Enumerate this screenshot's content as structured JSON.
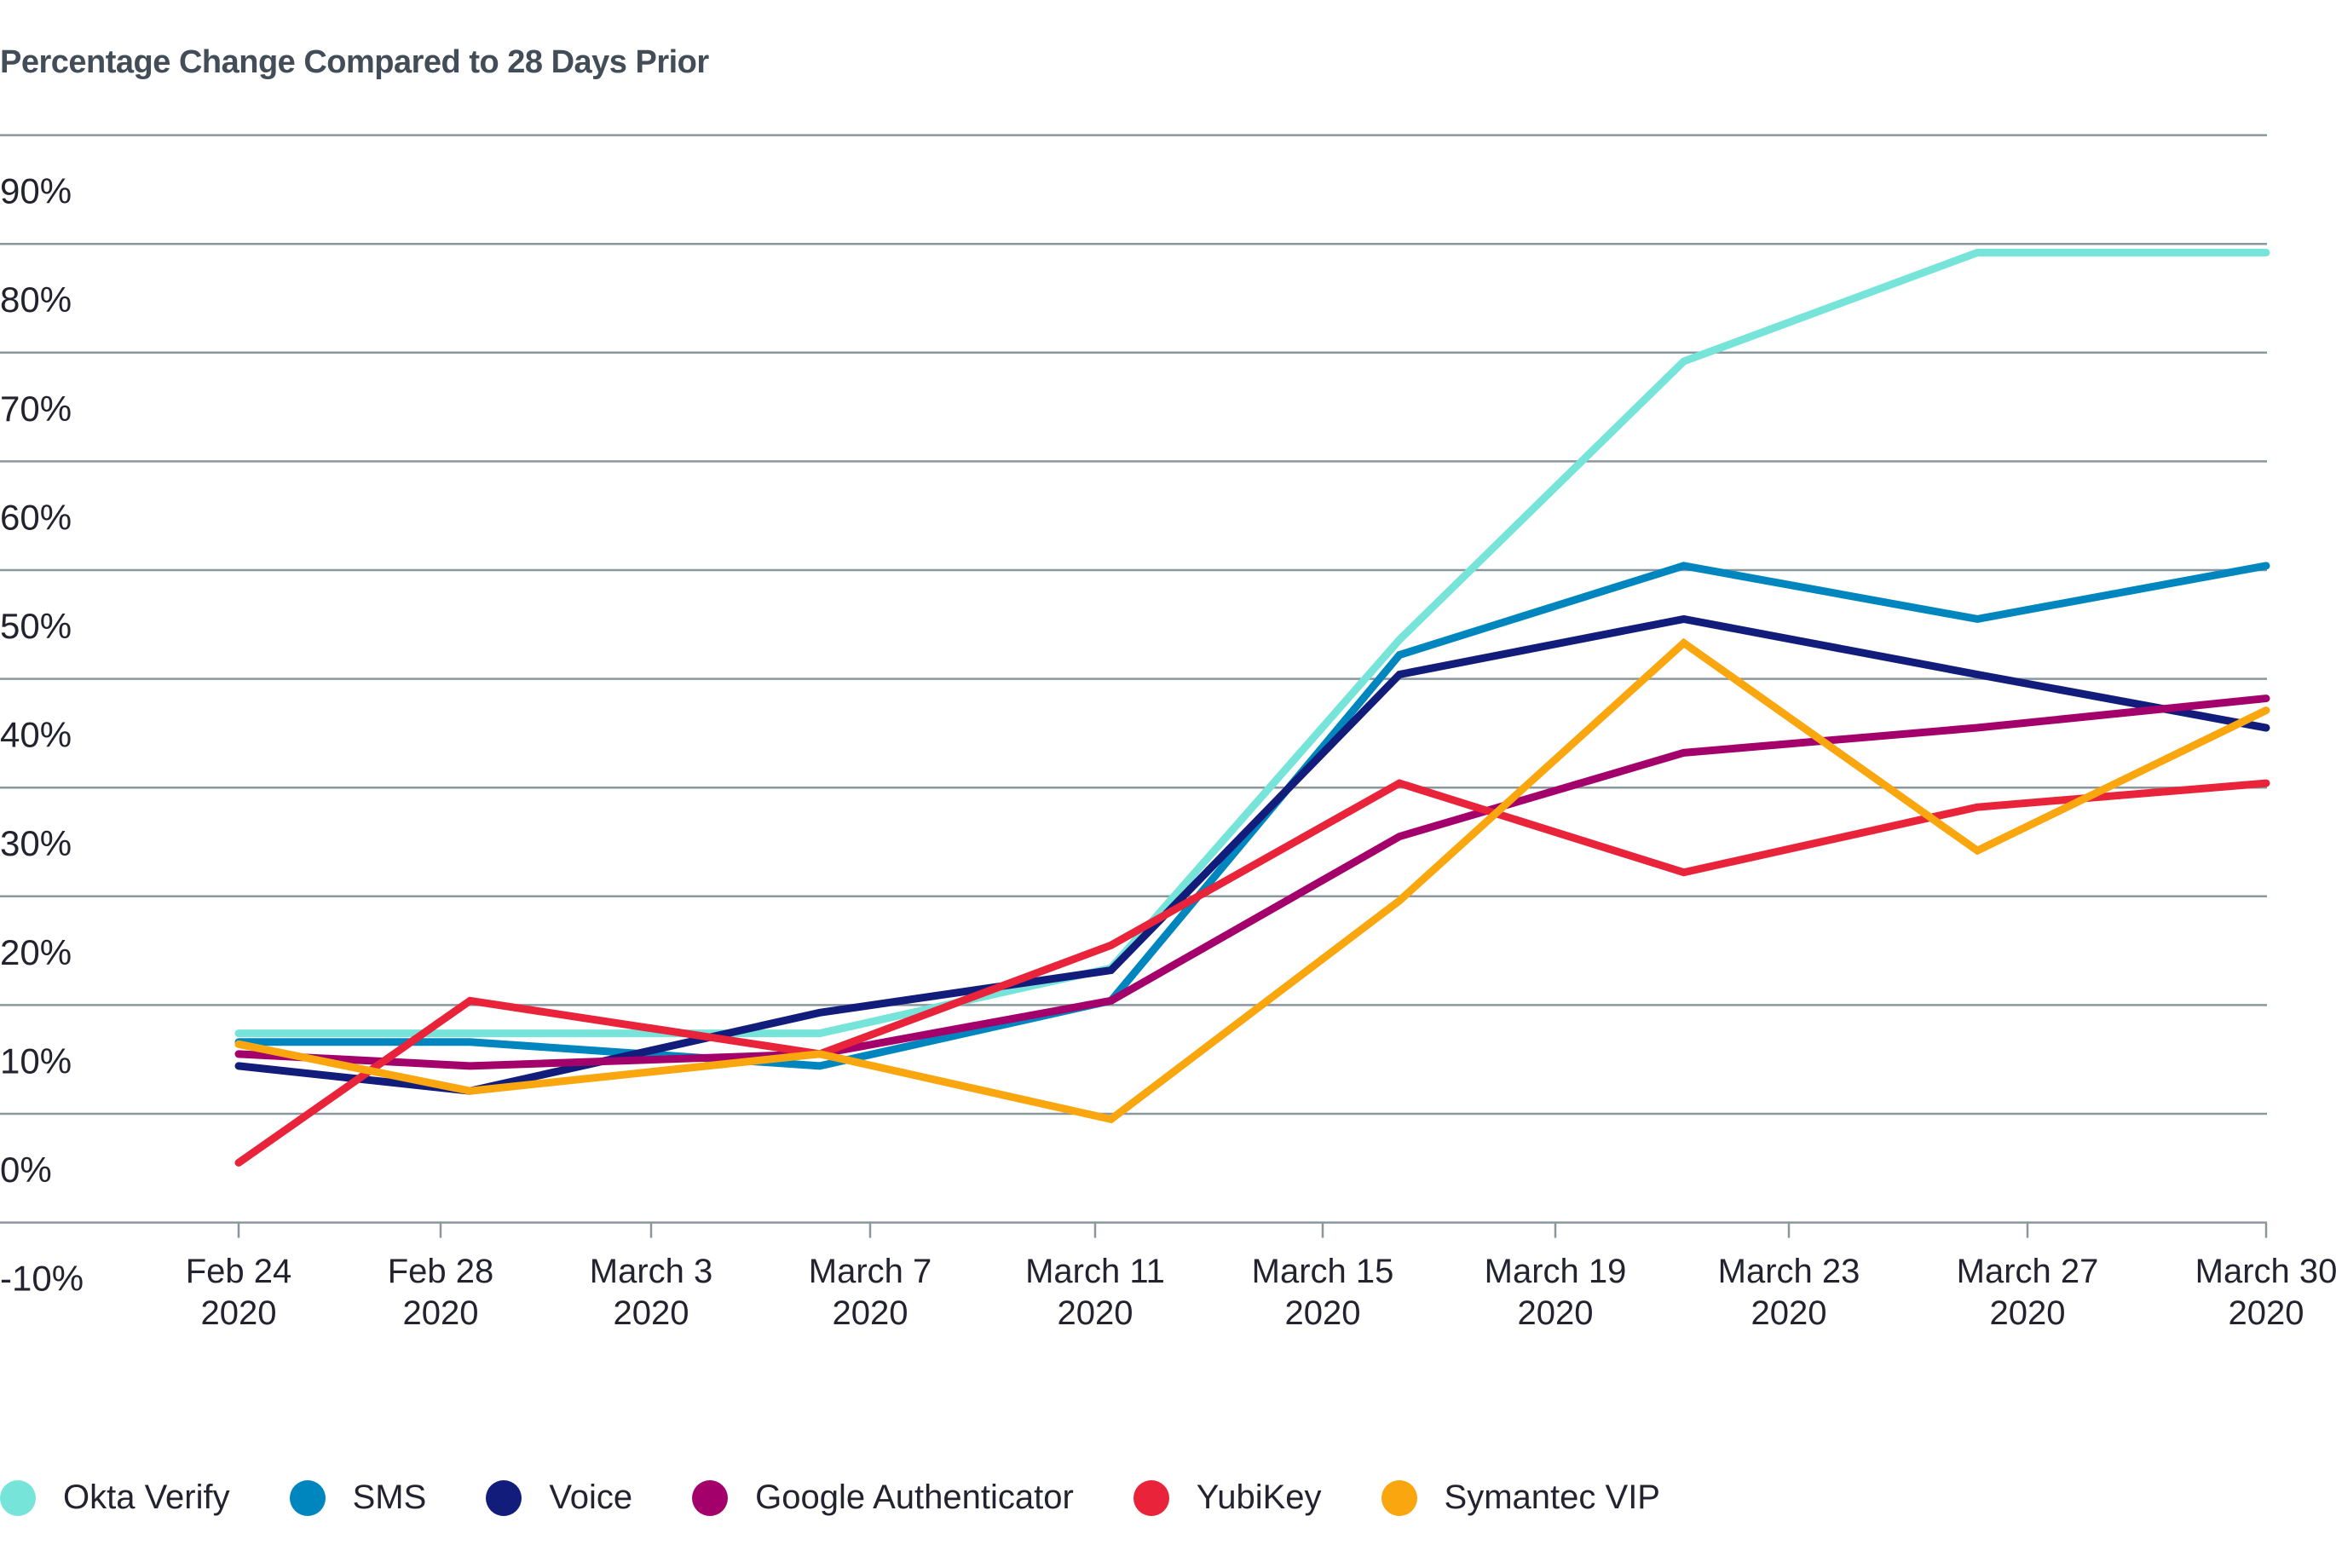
{
  "chart_data": {
    "type": "line",
    "title": "Percentage Change Compared to 28 Days Prior",
    "xlabel": "",
    "ylabel": "",
    "ylim": [
      -10,
      90
    ],
    "yticks": [
      90,
      80,
      70,
      60,
      50,
      40,
      30,
      20,
      10,
      0,
      -10
    ],
    "ytick_labels": [
      "90%",
      "80%",
      "70%",
      "60%",
      "50%",
      "40%",
      "30%",
      "20%",
      "10%",
      "0%",
      "-10%"
    ],
    "categories": [
      {
        "line1": "Feb 24",
        "line2": "2020"
      },
      {
        "line1": "Feb 28",
        "line2": "2020"
      },
      {
        "line1": "March 3",
        "line2": "2020"
      },
      {
        "line1": "March 7",
        "line2": "2020"
      },
      {
        "line1": "March 11",
        "line2": "2020"
      },
      {
        "line1": "March 15",
        "line2": "2020"
      },
      {
        "line1": "March 19",
        "line2": "2020"
      },
      {
        "line1": "March 23",
        "line2": "2020"
      },
      {
        "line1": "March 27",
        "line2": "2020"
      },
      {
        "line1": "March 30",
        "line2": "2020"
      }
    ],
    "x_tick_index": [
      0,
      1.14,
      2.77,
      4.07,
      5.33,
      6.55,
      7.79,
      9
    ],
    "grid": true,
    "legend_position": "bottom",
    "series": [
      {
        "name": "Okta Verify",
        "color": "#76e4d9",
        "values": [
          7.4,
          7.4,
          7.4,
          13.4,
          43.6,
          69.2,
          79.2,
          79.2
        ]
      },
      {
        "name": "SMS",
        "color": "#0086bf",
        "values": [
          6.6,
          6.6,
          4.4,
          10.4,
          42.2,
          50.4,
          45.5,
          50.4
        ]
      },
      {
        "name": "Voice",
        "color": "#121c7a",
        "values": [
          4.4,
          2.1,
          9.3,
          13.2,
          40.4,
          45.5,
          40.4,
          35.5
        ]
      },
      {
        "name": "Google Authenticator",
        "color": "#a3006c",
        "values": [
          5.5,
          4.4,
          5.5,
          10.4,
          25.5,
          33.2,
          35.5,
          38.2
        ]
      },
      {
        "name": "YubiKey",
        "color": "#e8233a",
        "values": [
          -4.5,
          10.4,
          5.5,
          15.5,
          30.4,
          22.2,
          28.2,
          30.4
        ]
      },
      {
        "name": "Symantec VIP",
        "color": "#f9a60f",
        "values": [
          6.4,
          2.1,
          5.5,
          -0.5,
          19.6,
          43.3,
          24.2,
          37.1
        ]
      }
    ]
  }
}
